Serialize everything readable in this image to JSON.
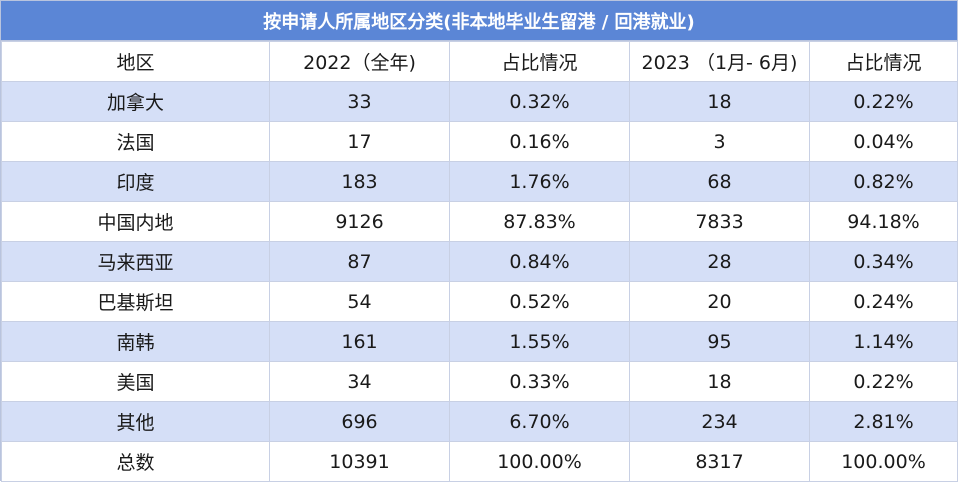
{
  "title": "按申请人所属地区分类(非本地毕业生留港 / 回港就业)",
  "headers": [
    "地区",
    "2022（全年)",
    "占比情况",
    "2023 （1月- 6月)",
    "占比情况"
  ],
  "rows": [
    {
      "region": "加拿大",
      "y2022": "33",
      "pct2022": "0.32%",
      "y2023": "18",
      "pct2023": "0.22%"
    },
    {
      "region": "法国",
      "y2022": "17",
      "pct2022": "0.16%",
      "y2023": "3",
      "pct2023": "0.04%"
    },
    {
      "region": "印度",
      "y2022": "183",
      "pct2022": "1.76%",
      "y2023": "68",
      "pct2023": "0.82%"
    },
    {
      "region": "中国内地",
      "y2022": "9126",
      "pct2022": "87.83%",
      "y2023": "7833",
      "pct2023": "94.18%"
    },
    {
      "region": "马来西亚",
      "y2022": "87",
      "pct2022": "0.84%",
      "y2023": "28",
      "pct2023": "0.34%"
    },
    {
      "region": "巴基斯坦",
      "y2022": "54",
      "pct2022": "0.52%",
      "y2023": "20",
      "pct2023": "0.24%"
    },
    {
      "region": "南韩",
      "y2022": "161",
      "pct2022": "1.55%",
      "y2023": "95",
      "pct2023": "1.14%"
    },
    {
      "region": "美国",
      "y2022": "34",
      "pct2022": "0.33%",
      "y2023": "18",
      "pct2023": "0.22%"
    },
    {
      "region": "其他",
      "y2022": "696",
      "pct2022": "6.70%",
      "y2023": "234",
      "pct2023": "2.81%"
    },
    {
      "region": "总数",
      "y2022": "10391",
      "pct2022": "100.00%",
      "y2023": "8317",
      "pct2023": "100.00%"
    }
  ],
  "colors": {
    "title_bg": "#5b86d6",
    "stripe_bg": "#d5dff7",
    "border": "#c8d0e4"
  }
}
